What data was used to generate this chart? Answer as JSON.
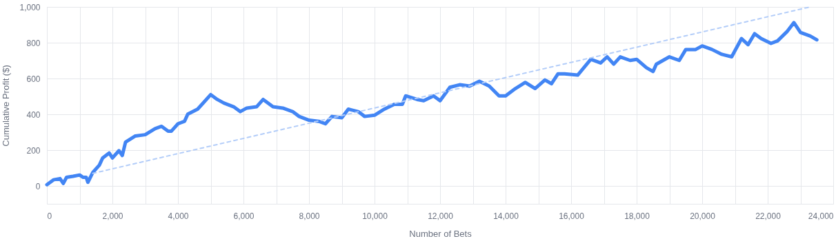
{
  "chart_data": {
    "type": "line",
    "xlabel": "Number of Bets",
    "ylabel": "Cumulative Profit ($)",
    "xlim": [
      0,
      24000
    ],
    "ylim": [
      -100,
      1000
    ],
    "xticks": [
      {
        "value": 0,
        "label": "0"
      },
      {
        "value": 1000,
        "label": null
      },
      {
        "value": 2000,
        "label": "2,000"
      },
      {
        "value": 3000,
        "label": null
      },
      {
        "value": 4000,
        "label": "4,000"
      },
      {
        "value": 5000,
        "label": null
      },
      {
        "value": 6000,
        "label": "6,000"
      },
      {
        "value": 7000,
        "label": null
      },
      {
        "value": 8000,
        "label": "8,000"
      },
      {
        "value": 9000,
        "label": null
      },
      {
        "value": 10000,
        "label": "10,000"
      },
      {
        "value": 11000,
        "label": null
      },
      {
        "value": 12000,
        "label": "12,000"
      },
      {
        "value": 13000,
        "label": null
      },
      {
        "value": 14000,
        "label": "14,000"
      },
      {
        "value": 15000,
        "label": null
      },
      {
        "value": 16000,
        "label": "16,000"
      },
      {
        "value": 17000,
        "label": null
      },
      {
        "value": 18000,
        "label": "18,000"
      },
      {
        "value": 19000,
        "label": null
      },
      {
        "value": 20000,
        "label": "20,000"
      },
      {
        "value": 21000,
        "label": null
      },
      {
        "value": 22000,
        "label": "22,000"
      },
      {
        "value": 23000,
        "label": null
      },
      {
        "value": 24000,
        "label": "24,000"
      }
    ],
    "yticks": [
      0,
      200,
      400,
      600,
      800,
      {
        "value": 1000,
        "label": "1,000"
      }
    ],
    "grid": true,
    "marker": "none",
    "series": [
      {
        "color": "#4285f4",
        "line_style": "solid",
        "x": [
          0,
          200,
          400,
          500,
          600,
          800,
          1000,
          1100,
          1200,
          1250,
          1400,
          1600,
          1700,
          1900,
          2000,
          2200,
          2300,
          2400,
          2700,
          3000,
          3300,
          3500,
          3700,
          3800,
          4000,
          4200,
          4300,
          4600,
          4800,
          5000,
          5200,
          5400,
          5700,
          5900,
          6100,
          6400,
          6600,
          6900,
          7200,
          7500,
          7700,
          8000,
          8300,
          8500,
          8700,
          9000,
          9200,
          9500,
          9700,
          10000,
          10300,
          10600,
          10850,
          10950,
          11300,
          11500,
          11800,
          12000,
          12300,
          12600,
          12900,
          13200,
          13500,
          13800,
          14000,
          14300,
          14600,
          14900,
          15200,
          15400,
          15600,
          15800,
          16200,
          16600,
          16900,
          17100,
          17300,
          17500,
          17800,
          18000,
          18300,
          18500,
          18600,
          19000,
          19300,
          19500,
          19800,
          20000,
          20300,
          20600,
          20900,
          21200,
          21400,
          21600,
          21800,
          22100,
          22300,
          22600,
          22800,
          23000,
          23300,
          23500
        ],
        "values": [
          7,
          34,
          41,
          14,
          48,
          54,
          61,
          48,
          48,
          20,
          75,
          116,
          156,
          184,
          156,
          197,
          170,
          245,
          279,
          286,
          320,
          333,
          306,
          306,
          347,
          361,
          401,
          429,
          469,
          510,
          483,
          463,
          442,
          415,
          435,
          442,
          483,
          442,
          435,
          415,
          388,
          367,
          361,
          347,
          388,
          381,
          429,
          415,
          388,
          395,
          429,
          456,
          456,
          503,
          483,
          476,
          503,
          476,
          551,
          565,
          558,
          585,
          558,
          503,
          503,
          544,
          578,
          544,
          592,
          571,
          626,
          626,
          619,
          707,
          687,
          721,
          680,
          721,
          701,
          707,
          660,
          639,
          680,
          721,
          701,
          762,
          762,
          782,
          762,
          735,
          721,
          823,
          789,
          850,
          823,
          796,
          810,
          864,
          912,
          857,
          837,
          816
        ]
      },
      {
        "color": "#b3cdf9",
        "line_style": "dashed",
        "x": [
          1400,
          23300
        ],
        "values": [
          70,
          1000
        ]
      }
    ]
  }
}
